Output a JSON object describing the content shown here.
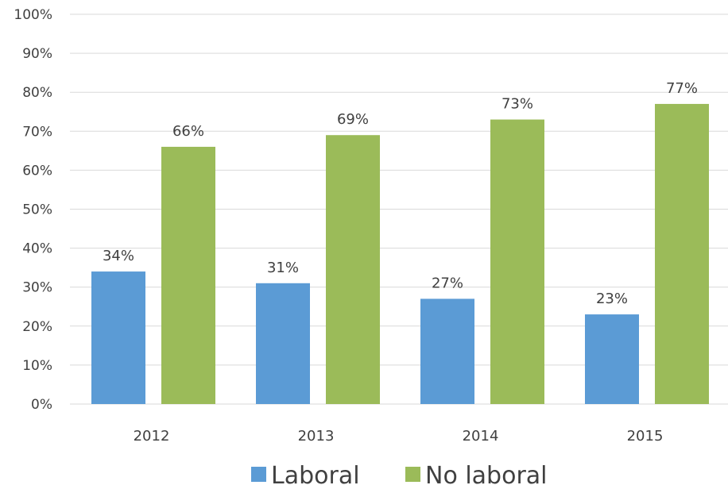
{
  "chart_data": {
    "type": "bar",
    "title": "",
    "xlabel": "",
    "ylabel": "",
    "categories": [
      "2012",
      "2013",
      "2014",
      "2015"
    ],
    "series": [
      {
        "name": "Laboral",
        "color": "#5B9BD5",
        "values": [
          34,
          31,
          27,
          23
        ],
        "labels": [
          "34%",
          "31%",
          "27%",
          "23%"
        ]
      },
      {
        "name": "No laboral",
        "color": "#9BBB59",
        "values": [
          66,
          69,
          73,
          77
        ],
        "labels": [
          "66%",
          "69%",
          "73%",
          "77%"
        ]
      }
    ],
    "ylim": [
      0,
      100
    ],
    "yticks": [
      "0%",
      "10%",
      "20%",
      "30%",
      "40%",
      "50%",
      "60%",
      "70%",
      "80%",
      "90%",
      "100%"
    ],
    "grid": true,
    "legend": "bottom-center",
    "gridline_color": "#D9D9D9"
  }
}
